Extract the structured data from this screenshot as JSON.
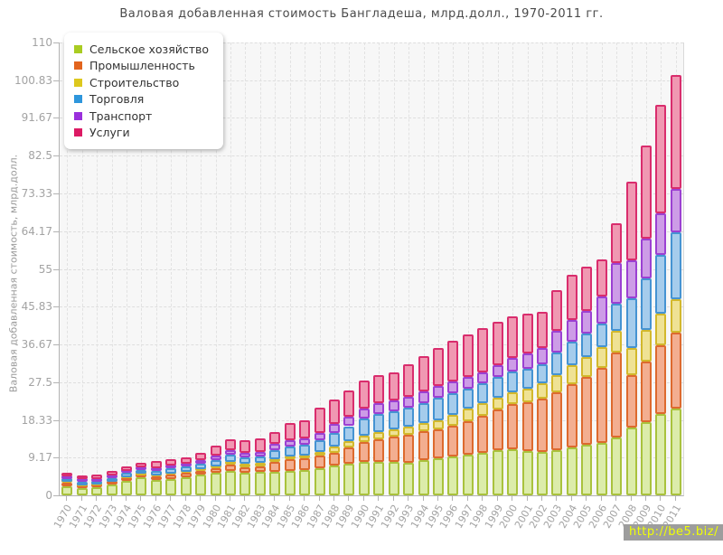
{
  "title": "Валовая добавленная стоимость Бангладеша, млрд.долл., 1970-2011 гг.",
  "watermark": "http://be5.biz/",
  "chart_data": {
    "type": "bar",
    "stacked": true,
    "title": "Валовая добавленная стоимость Бангладеша, млрд.долл., 1970-2011 гг.",
    "ylabel": "Валовая добавленная стоимость, млрд.долл.",
    "ylim": [
      0,
      110
    ],
    "grid": true,
    "legend_position": "top-left",
    "y_ticks": [
      {
        "value": 0,
        "label": "0"
      },
      {
        "value": 9.17,
        "label": "9.17"
      },
      {
        "value": 18.33,
        "label": "18.33"
      },
      {
        "value": 27.5,
        "label": "27.5"
      },
      {
        "value": 36.67,
        "label": "36.67"
      },
      {
        "value": 45.83,
        "label": "45.83"
      },
      {
        "value": 55,
        "label": "55"
      },
      {
        "value": 64.17,
        "label": "64.17"
      },
      {
        "value": 73.33,
        "label": "73.33"
      },
      {
        "value": 82.5,
        "label": "82.5"
      },
      {
        "value": 91.67,
        "label": "91.67"
      },
      {
        "value": 100.83,
        "label": "100.83"
      },
      {
        "value": 110,
        "label": "110"
      }
    ],
    "categories": [
      "1970",
      "1971",
      "1972",
      "1973",
      "1974",
      "1975",
      "1976",
      "1977",
      "1978",
      "1979",
      "1980",
      "1981",
      "1982",
      "1983",
      "1984",
      "1985",
      "1986",
      "1987",
      "1988",
      "1989",
      "1990",
      "1991",
      "1992",
      "1993",
      "1994",
      "1995",
      "1996",
      "1997",
      "1998",
      "1999",
      "2000",
      "2001",
      "2002",
      "2003",
      "2004",
      "2005",
      "2006",
      "2007",
      "2008",
      "2009",
      "2010",
      "2011"
    ],
    "series": [
      {
        "name": "Сельское хозяйство",
        "legend_color": "#a9cc22",
        "fill": "#dcecা9",
        "values": [
          2.3,
          1.7,
          2.0,
          2.6,
          3.6,
          4.3,
          3.7,
          4.0,
          4.4,
          5.0,
          5.4,
          6.0,
          5.6,
          5.8,
          5.8,
          6.0,
          6.2,
          6.7,
          7.3,
          7.7,
          8.1,
          8.2,
          8.1,
          8.0,
          8.6,
          9.1,
          9.4,
          9.8,
          10.4,
          10.9,
          11.1,
          10.8,
          10.6,
          10.9,
          11.6,
          12.2,
          12.7,
          14.0,
          16.5,
          17.8,
          19.8,
          21.0
        ]
      },
      {
        "name": "Промышленность",
        "legend_color": "#e2641e",
        "values": [
          0.7,
          0.6,
          0.5,
          0.6,
          0.6,
          0.6,
          0.9,
          1.0,
          1.0,
          1.0,
          1.2,
          1.4,
          1.3,
          1.3,
          2.3,
          2.7,
          2.7,
          2.9,
          3.1,
          3.9,
          4.9,
          5.5,
          6.1,
          6.8,
          7.0,
          6.9,
          7.5,
          8.3,
          9.0,
          10.0,
          11.0,
          11.9,
          12.8,
          14.1,
          15.4,
          16.6,
          18.3,
          20.7,
          12.7,
          14.7,
          16.7,
          18.6
        ]
      },
      {
        "name": "Строительство",
        "legend_color": "#ddc81e",
        "values": [
          0.2,
          0.2,
          0.2,
          0.2,
          0.2,
          0.3,
          0.3,
          0.3,
          0.4,
          0.4,
          0.5,
          0.7,
          0.7,
          0.7,
          0.7,
          0.7,
          0.8,
          0.9,
          1.5,
          1.5,
          1.6,
          1.7,
          1.8,
          1.9,
          2.0,
          2.3,
          2.6,
          3.0,
          2.9,
          2.9,
          2.9,
          3.3,
          3.8,
          4.2,
          4.6,
          4.8,
          5.0,
          5.3,
          6.6,
          7.7,
          7.6,
          8.1
        ]
      },
      {
        "name": "Торговля",
        "legend_color": "#2e96dc",
        "values": [
          0.8,
          0.8,
          0.7,
          0.8,
          1.0,
          1.0,
          1.0,
          1.2,
          1.2,
          1.3,
          1.5,
          1.7,
          1.6,
          1.6,
          2.2,
          2.5,
          2.6,
          2.9,
          3.3,
          3.7,
          4.1,
          4.4,
          4.4,
          4.5,
          4.8,
          5.4,
          5.3,
          4.9,
          4.9,
          5.0,
          5.1,
          4.8,
          4.6,
          5.4,
          5.7,
          5.8,
          5.7,
          6.6,
          12.1,
          12.4,
          14.4,
          16.1
        ]
      },
      {
        "name": "Транспорт",
        "legend_color": "#9a30dc",
        "values": [
          0.6,
          0.6,
          0.6,
          0.6,
          0.6,
          0.6,
          0.7,
          0.7,
          0.7,
          0.8,
          1.0,
          1.1,
          1.2,
          1.2,
          1.5,
          1.6,
          1.6,
          1.8,
          2.2,
          2.3,
          2.4,
          2.5,
          2.6,
          2.7,
          2.8,
          2.9,
          2.8,
          2.7,
          2.6,
          2.8,
          3.2,
          3.6,
          4.0,
          5.4,
          5.4,
          5.5,
          6.5,
          9.8,
          9.1,
          9.8,
          10.0,
          10.7
        ]
      },
      {
        "name": "Услуги",
        "legend_color": "#dc1a64",
        "values": [
          0.8,
          1.0,
          1.0,
          1.2,
          1.1,
          1.1,
          1.7,
          1.6,
          1.6,
          1.9,
          2.4,
          2.8,
          2.9,
          3.3,
          2.8,
          4.1,
          4.3,
          6.2,
          5.9,
          6.3,
          6.7,
          7.0,
          6.9,
          7.9,
          8.6,
          9.3,
          9.9,
          10.4,
          10.8,
          10.6,
          10.2,
          9.7,
          8.8,
          9.8,
          10.8,
          10.7,
          9.2,
          9.6,
          19.3,
          22.6,
          26.4,
          27.5
        ]
      }
    ],
    "bar_styles": [
      {
        "fill": "#dcecaa",
        "border": "#a9c23d"
      },
      {
        "fill": "#f3ae90",
        "border": "#dd6a2e"
      },
      {
        "fill": "#efe294",
        "border": "#d2b82c"
      },
      {
        "fill": "#a5ccec",
        "border": "#4593d2"
      },
      {
        "fill": "#cd9ce7",
        "border": "#9b40d2"
      },
      {
        "fill": "#f098b2",
        "border": "#d92d6d"
      }
    ]
  }
}
